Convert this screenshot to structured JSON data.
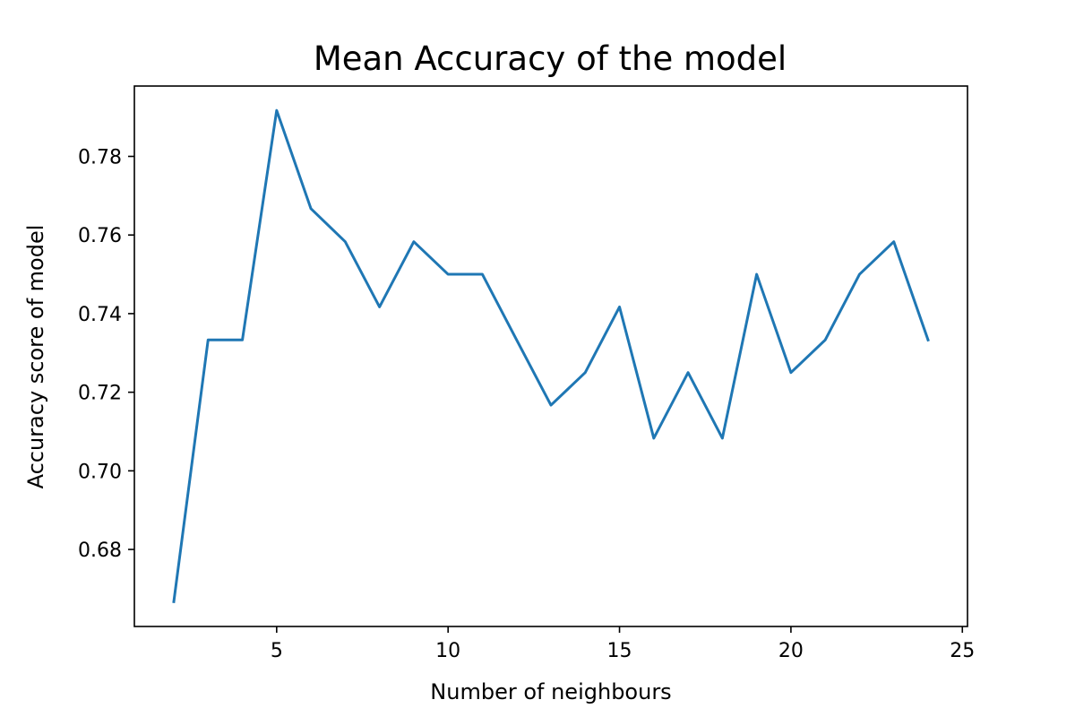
{
  "chart_data": {
    "type": "line",
    "title": "Mean Accuracy of the model",
    "xlabel": "Number of neighbours",
    "ylabel": "Accuracy score of model",
    "xlim": [
      0.85,
      25.15
    ],
    "ylim": [
      0.6604,
      0.7979
    ],
    "xticks": [
      5,
      10,
      15,
      20,
      25
    ],
    "yticks": [
      0.68,
      0.7,
      0.72,
      0.74,
      0.76,
      0.78
    ],
    "ytick_labels": [
      "0.68",
      "0.70",
      "0.72",
      "0.74",
      "0.76",
      "0.78"
    ],
    "grid": false,
    "series": [
      {
        "color": "#1f77b4",
        "x": [
          2,
          3,
          4,
          5,
          6,
          7,
          8,
          9,
          10,
          11,
          12,
          13,
          14,
          15,
          16,
          17,
          18,
          19,
          20,
          21,
          22,
          23,
          24
        ],
        "y": [
          0.6667,
          0.7333,
          0.7333,
          0.7917,
          0.7667,
          0.7583,
          0.7417,
          0.7583,
          0.75,
          0.75,
          0.7333,
          0.7167,
          0.725,
          0.7417,
          0.7083,
          0.725,
          0.7083,
          0.75,
          0.725,
          0.7333,
          0.75,
          0.7583,
          0.7333
        ]
      }
    ]
  }
}
